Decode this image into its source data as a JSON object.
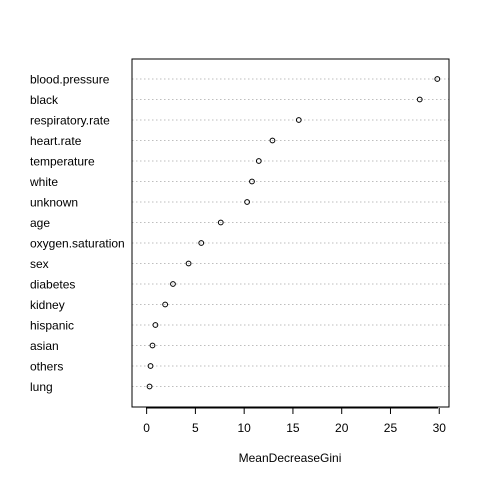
{
  "chart_data": {
    "type": "scatter",
    "style": "dotchart",
    "title": "",
    "xlabel": "MeanDecreaseGini",
    "ylabel": "",
    "xlim": [
      -1.5,
      31
    ],
    "x_ticks": [
      0,
      5,
      10,
      15,
      20,
      25,
      30
    ],
    "grid": "dotted horizontal lines",
    "categories": [
      "blood.pressure",
      "black",
      "respiratory.rate",
      "heart.rate",
      "temperature",
      "white",
      "unknown",
      "age",
      "oxygen.saturation",
      "sex",
      "diabetes",
      "kidney",
      "hispanic",
      "asian",
      "others",
      "lung"
    ],
    "values": [
      29.8,
      28.0,
      15.6,
      12.9,
      11.5,
      10.8,
      10.3,
      7.6,
      5.6,
      4.3,
      2.7,
      1.9,
      0.9,
      0.6,
      0.4,
      0.3
    ],
    "colors": {
      "point": "#000000",
      "grid": "#bebebe",
      "axis": "#000000"
    }
  }
}
